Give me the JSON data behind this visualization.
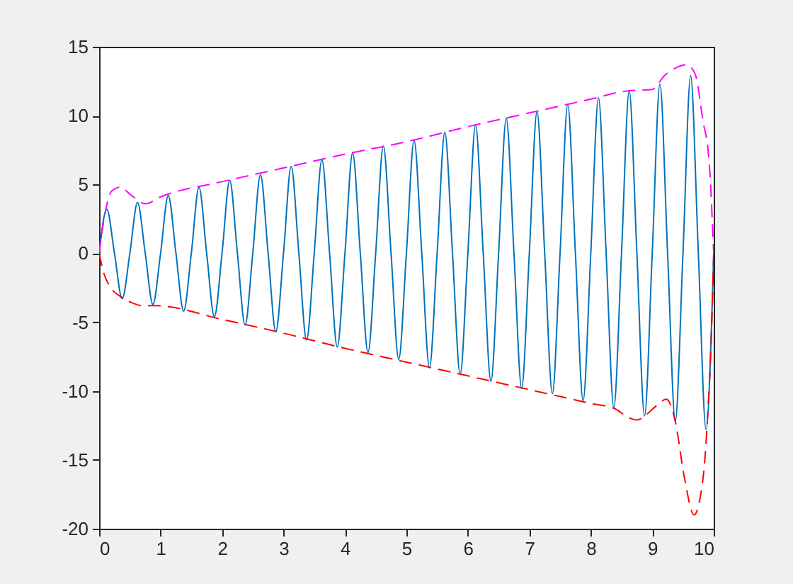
{
  "chart_data": {
    "type": "line",
    "xlim": [
      0,
      10
    ],
    "ylim": [
      -20,
      15
    ],
    "xticks": [
      0,
      1,
      2,
      3,
      4,
      5,
      6,
      7,
      8,
      9,
      10
    ],
    "yticks": [
      -20,
      -15,
      -10,
      -5,
      0,
      5,
      10,
      15
    ],
    "series": [
      {
        "color": "#0072bd",
        "line_style": "solid",
        "x": [
          0,
          0.125,
          0.25,
          0.375,
          0.5,
          0.625,
          0.75,
          0.875,
          1,
          1.125,
          1.25,
          1.375,
          1.5,
          1.625,
          1.75,
          1.875,
          2,
          2.125,
          2.25,
          2.375,
          2.5,
          2.625,
          2.75,
          2.875,
          3,
          3.125,
          3.25,
          3.375,
          3.5,
          3.625,
          3.75,
          3.875,
          4,
          4.125,
          4.25,
          4.375,
          4.5,
          4.625,
          4.75,
          4.875,
          5,
          5.125,
          5.25,
          5.375,
          5.5,
          5.625,
          5.75,
          5.875,
          6,
          6.125,
          6.25,
          6.375,
          6.5,
          6.625,
          6.75,
          6.875,
          7,
          7.125,
          7.25,
          7.375,
          7.5,
          7.625,
          7.75,
          7.875,
          8,
          8.125,
          8.25,
          8.375,
          8.5,
          8.625,
          8.75,
          8.875,
          9,
          9.125,
          9.25,
          9.375,
          9.5,
          9.625,
          9.75,
          9.875,
          10
        ],
        "values": [
          0,
          3.2,
          0,
          -3.3,
          0,
          3.7,
          0,
          -3.7,
          0,
          4.2,
          0,
          -4.2,
          0,
          4.8,
          0,
          -4.6,
          0,
          5.3,
          0,
          -5.2,
          0,
          5.7,
          0,
          -5.7,
          0,
          6.3,
          0,
          -6.3,
          0,
          6.8,
          0,
          -6.8,
          0,
          7.3,
          0,
          -7.2,
          0,
          7.8,
          0,
          -7.7,
          0,
          8.2,
          0,
          -8.3,
          0,
          8.8,
          0,
          -8.8,
          0,
          9.3,
          0,
          -9.3,
          0,
          9.8,
          0,
          -9.8,
          0,
          10.3,
          0,
          -10.2,
          0,
          10.8,
          0,
          -10.7,
          0,
          11.3,
          0,
          -11.2,
          0,
          11.8,
          0,
          -11.8,
          0,
          12.3,
          0,
          -12.2,
          0,
          12.9,
          0,
          -12.8,
          0
        ]
      },
      {
        "color": "#ff00ff",
        "line_style": "dashed",
        "x": [
          0,
          0.1,
          0.2,
          0.35,
          0.5,
          0.75,
          1,
          2,
          3,
          4,
          5,
          6,
          7,
          8,
          8.6,
          9,
          9.2,
          9.4,
          9.56,
          9.7,
          9.83,
          9.91,
          9.95,
          9.98,
          10
        ],
        "values": [
          0,
          3.0,
          4.5,
          4.8,
          4.3,
          3.6,
          4.1,
          5.2,
          6.2,
          7.2,
          8.1,
          9.2,
          10.2,
          11.2,
          11.8,
          11.9,
          12.9,
          13.5,
          13.7,
          13.0,
          9.5,
          7.4,
          5.0,
          2.0,
          0
        ]
      },
      {
        "color": "#ff0000",
        "line_style": "dashed",
        "x": [
          0,
          0.08,
          0.19,
          0.37,
          0.54,
          0.7,
          0.92,
          2,
          3,
          4,
          5,
          6,
          7,
          8,
          8.4,
          8.6,
          8.76,
          8.88,
          9.06,
          9.23,
          9.37,
          9.52,
          9.68,
          9.83,
          9.91,
          9.97,
          10
        ],
        "values": [
          0,
          -1.5,
          -2.5,
          -3.2,
          -3.6,
          -3.8,
          -3.8,
          -4.8,
          -5.8,
          -6.9,
          -7.9,
          -8.9,
          -9.9,
          -10.9,
          -11.3,
          -11.9,
          -12.1,
          -11.8,
          -11.1,
          -10.6,
          -12.1,
          -16.2,
          -19.0,
          -16.2,
          -11.1,
          -4.9,
          0
        ]
      }
    ]
  }
}
